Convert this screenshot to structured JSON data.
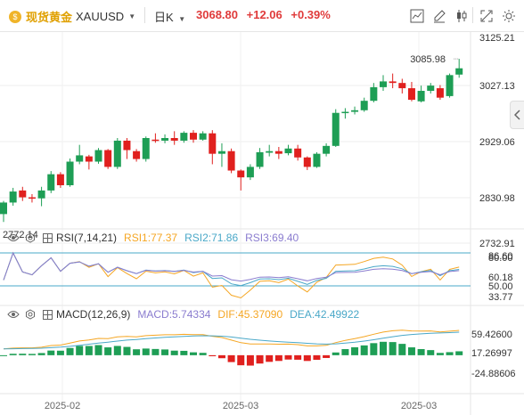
{
  "header": {
    "symbol_name": "现货黄金",
    "symbol_code": "XAUUSD",
    "interval": "日K",
    "last_price": "3068.80",
    "change": "+12.06",
    "change_pct": "+0.39%"
  },
  "main_chart": {
    "y_ticks": [
      "3125.21",
      "3027.13",
      "2929.06",
      "2830.98",
      "2732.91"
    ],
    "high_label": "3085.98",
    "low_label": "2772.14"
  },
  "rsi": {
    "title": "RSI(7,14,21)",
    "rsi1": "RSI1:77.37",
    "rsi2": "RSI2:71.86",
    "rsi3": "RSI3:69.40",
    "y_ticks": [
      "86.60",
      "80.00",
      "60.18",
      "50.00",
      "33.77"
    ],
    "colors": {
      "rsi1": "#f5a623",
      "rsi2": "#4aa8c8",
      "rsi3": "#8a7ccf"
    }
  },
  "macd": {
    "title": "MACD(12,26,9)",
    "macd": "MACD:5.74334",
    "dif": "DIF:45.37090",
    "dea": "DEA:42.49922",
    "y_ticks": [
      "59.42600",
      "17.26997",
      "-24.88606"
    ],
    "colors": {
      "macd": "#8a7ccf",
      "dif": "#f5a623",
      "dea": "#4aa8c8"
    }
  },
  "x_axis": [
    "2025-02",
    "2025-03",
    "2025-03"
  ],
  "colors": {
    "up": "#1e9e55",
    "down": "#e0201e",
    "accent": "#e03b3b",
    "brand": "#f0b429"
  },
  "chart_data": {
    "type": "candlestick",
    "candles": [
      [
        2790,
        2812,
        2775,
        2815
      ],
      [
        2812,
        2833,
        2806,
        2840
      ],
      [
        2835,
        2822,
        2815,
        2842
      ],
      [
        2822,
        2820,
        2812,
        2828
      ],
      [
        2820,
        2835,
        2805,
        2842
      ],
      [
        2835,
        2866,
        2830,
        2872
      ],
      [
        2866,
        2845,
        2840,
        2870
      ],
      [
        2845,
        2890,
        2842,
        2896
      ],
      [
        2890,
        2902,
        2885,
        2922
      ],
      [
        2900,
        2890,
        2875,
        2903
      ],
      [
        2890,
        2912,
        2886,
        2916
      ],
      [
        2912,
        2880,
        2876,
        2914
      ],
      [
        2880,
        2930,
        2876,
        2935
      ],
      [
        2930,
        2912,
        2895,
        2935
      ],
      [
        2910,
        2895,
        2890,
        2914
      ],
      [
        2895,
        2935,
        2890,
        2938
      ],
      [
        2932,
        2930,
        2926,
        2944
      ],
      [
        2930,
        2935,
        2925,
        2942
      ],
      [
        2935,
        2930,
        2922,
        2948
      ],
      [
        2930,
        2945,
        2926,
        2948
      ],
      [
        2945,
        2932,
        2926,
        2950
      ],
      [
        2932,
        2944,
        2930,
        2948
      ],
      [
        2944,
        2905,
        2885,
        2950
      ],
      [
        2905,
        2910,
        2880,
        2925
      ],
      [
        2910,
        2873,
        2868,
        2915
      ],
      [
        2873,
        2860,
        2835,
        2875
      ],
      [
        2860,
        2880,
        2855,
        2885
      ],
      [
        2880,
        2908,
        2876,
        2916
      ],
      [
        2907,
        2910,
        2900,
        2922
      ],
      [
        2910,
        2905,
        2895,
        2918
      ],
      [
        2906,
        2915,
        2902,
        2922
      ],
      [
        2915,
        2898,
        2892,
        2922
      ],
      [
        2898,
        2880,
        2874,
        2900
      ],
      [
        2880,
        2905,
        2878,
        2908
      ],
      [
        2905,
        2920,
        2900,
        2925
      ],
      [
        2920,
        2983,
        2918,
        2990
      ],
      [
        2984,
        2985,
        2972,
        2992
      ],
      [
        2985,
        2988,
        2980,
        2995
      ],
      [
        2988,
        3006,
        2985,
        3012
      ],
      [
        3006,
        3032,
        3003,
        3040
      ],
      [
        3032,
        3043,
        3025,
        3055
      ],
      [
        3043,
        3040,
        3030,
        3058
      ],
      [
        3040,
        3030,
        3020,
        3048
      ],
      [
        3030,
        3008,
        3005,
        3042
      ],
      [
        3005,
        3025,
        3003,
        3035
      ],
      [
        3025,
        3035,
        3020,
        3040
      ],
      [
        3030,
        3012,
        3008,
        3036
      ],
      [
        3015,
        3055,
        3012,
        3058
      ],
      [
        3056,
        3068,
        3050,
        3086
      ]
    ]
  }
}
